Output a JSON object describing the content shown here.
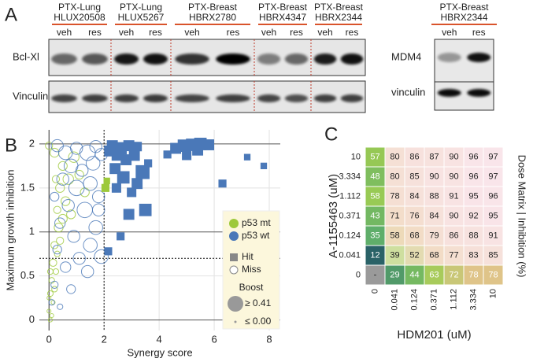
{
  "panel_a": {
    "label": "A",
    "groups": [
      {
        "tissue": "PTX-Lung",
        "model": "HLUX20508",
        "lanes": [
          "veh",
          "res"
        ]
      },
      {
        "tissue": "PTX-Lung",
        "model": "HLUX5267",
        "lanes": [
          "veh",
          "res"
        ]
      },
      {
        "tissue": "PTX-Breast",
        "model": "HBRX2780",
        "lanes": [
          "veh",
          "res"
        ]
      },
      {
        "tissue": "PTX-Breast",
        "model": "HBRX4347",
        "lanes": [
          "veh",
          "res"
        ]
      },
      {
        "tissue": "PTX-Breast",
        "model": "HBRX2344",
        "lanes": [
          "veh",
          "res"
        ]
      }
    ],
    "rows": [
      "Bcl-Xl",
      "Vinculin"
    ],
    "side": {
      "tissue": "PTX-Breast",
      "model": "HBRX2344",
      "lanes": [
        "veh",
        "res"
      ],
      "rows": [
        "MDM4",
        "vinculin"
      ]
    }
  },
  "chart_data": [
    {
      "type": "scatter",
      "panel_label": "B",
      "xlabel": "Synergy score",
      "ylabel": "Maximum growth inhibition",
      "xlim": [
        -0.35,
        8.4
      ],
      "ylim": [
        -0.12,
        2.16
      ],
      "xticks": [
        0,
        2,
        4,
        6,
        8
      ],
      "yticks": [
        0,
        0.5,
        1,
        1.5,
        2
      ],
      "grid": true,
      "thresholds": {
        "x": 2,
        "y": 0.7
      },
      "series": [
        {
          "name": "p53 mt",
          "color": "#9dc93b",
          "x": [
            2.05,
            2.1,
            0.05,
            0.1,
            0.0,
            0.15,
            0.05,
            0.2,
            0.1,
            0.25,
            0.15,
            0.3,
            0.2,
            0.4,
            0.35,
            0.5,
            0.3,
            0.6,
            0.4,
            0.7,
            0.5,
            0.2,
            0.0,
            0.9,
            1.1,
            0.8,
            1.3,
            0.05,
            0.0,
            0.25
          ],
          "values": [
            1.5,
            1.58,
            0.0,
            0.05,
            0.1,
            0.2,
            0.3,
            0.35,
            0.45,
            0.55,
            0.65,
            0.75,
            0.85,
            0.9,
            1.05,
            1.15,
            1.25,
            1.35,
            1.5,
            1.6,
            1.75,
            1.9,
            1.98,
            1.85,
            1.65,
            1.2,
            1.45,
            0.55,
            0.25,
            1.6
          ],
          "size": [
            0.2,
            0.15,
            0.05,
            0.05,
            0.05,
            0.05,
            0.1,
            0.1,
            0.1,
            0.1,
            0.15,
            0.1,
            0.15,
            0.15,
            0.2,
            0.2,
            0.15,
            0.2,
            0.2,
            0.25,
            0.2,
            0.2,
            0.15,
            0.25,
            0.2,
            0.2,
            0.2,
            0.1,
            0.05,
            0.15
          ],
          "hit": [
            true,
            true,
            false,
            false,
            false,
            false,
            false,
            false,
            false,
            false,
            false,
            false,
            false,
            false,
            false,
            false,
            false,
            false,
            false,
            false,
            false,
            false,
            false,
            false,
            false,
            false,
            false,
            false,
            false,
            false
          ]
        },
        {
          "name": "p53 wt",
          "color": "#4a78b8",
          "x": [
            2.3,
            2.6,
            2.9,
            3.2,
            2.5,
            2.8,
            3.1,
            2.4,
            2.7,
            3.4,
            3.2,
            3.0,
            2.9,
            3.5,
            2.6,
            2.15,
            4.6,
            4.9,
            5.2,
            5.5,
            5.8,
            5.4,
            5.0,
            4.3,
            6.3,
            7.2,
            7.8,
            2.2,
            2.45,
            3.6,
            0.3,
            0.6,
            1.0,
            1.4,
            1.7,
            0.8,
            1.2,
            1.6,
            0.5,
            1.0,
            1.5,
            1.8,
            0.7,
            1.3,
            0.4,
            1.7,
            0.9,
            1.5,
            0.3,
            1.1,
            1.9,
            0.6,
            1.4,
            0.2,
            0.8,
            0.1,
            0.4,
            1.8,
            1.9,
            0.2
          ],
          "values": [
            1.98,
            1.95,
            1.98,
            1.97,
            1.88,
            1.82,
            1.87,
            1.72,
            1.62,
            1.68,
            1.55,
            1.45,
            1.2,
            1.25,
            0.95,
            0.78,
            1.95,
            1.98,
            1.99,
            2.0,
            1.99,
            1.93,
            1.87,
            1.88,
            1.55,
            1.85,
            1.75,
            1.92,
            1.5,
            1.78,
            1.98,
            1.9,
            1.95,
            1.9,
            1.97,
            1.75,
            1.7,
            1.78,
            1.6,
            1.5,
            1.55,
            1.4,
            1.3,
            1.25,
            1.1,
            1.05,
            0.95,
            0.85,
            0.8,
            0.7,
            0.72,
            0.6,
            0.55,
            0.4,
            0.35,
            0.2,
            0.15,
            1.25,
            1.88,
            1.4
          ],
          "size": [
            0.3,
            0.35,
            0.3,
            0.25,
            0.35,
            0.3,
            0.3,
            0.3,
            0.35,
            0.4,
            0.3,
            0.25,
            0.3,
            0.35,
            0.2,
            0.2,
            0.3,
            0.35,
            0.35,
            0.35,
            0.3,
            0.3,
            0.25,
            0.2,
            0.2,
            0.15,
            0.15,
            0.3,
            0.25,
            0.2,
            0.3,
            0.35,
            0.3,
            0.4,
            0.3,
            0.35,
            0.3,
            0.35,
            0.3,
            0.4,
            0.35,
            0.3,
            0.3,
            0.4,
            0.25,
            0.35,
            0.3,
            0.35,
            0.2,
            0.3,
            0.35,
            0.25,
            0.3,
            0.15,
            0.2,
            0.1,
            0.1,
            0.3,
            0.3,
            0.2
          ],
          "hit": [
            true,
            true,
            true,
            true,
            true,
            true,
            true,
            true,
            true,
            true,
            true,
            true,
            true,
            true,
            true,
            true,
            true,
            true,
            true,
            true,
            true,
            true,
            true,
            true,
            true,
            true,
            true,
            true,
            true,
            true,
            false,
            false,
            false,
            false,
            false,
            false,
            false,
            false,
            false,
            false,
            false,
            false,
            false,
            false,
            false,
            false,
            false,
            false,
            false,
            false,
            false,
            false,
            false,
            false,
            false,
            false,
            false,
            false,
            false,
            false
          ]
        }
      ],
      "marker_legend": {
        "hit": "Hit",
        "miss": "Miss"
      },
      "size_legend": {
        "title": "Boost",
        "entries": [
          {
            "value": 0.41,
            "label": "≥ 0.41"
          },
          {
            "value": 0,
            "label": "≤ 0.00"
          }
        ]
      }
    },
    {
      "type": "heatmap",
      "panel_label": "C",
      "xlabel": "HDM201 (uM)",
      "ylabel": "A-1155463 (uM)",
      "colorbar_label": "Dose Matrix | Inhibition (%)",
      "x": [
        "0",
        "0.041",
        "0.124",
        "0.371",
        "1.112",
        "3.334",
        "10"
      ],
      "y": [
        "10",
        "3.334",
        "1.112",
        "0.371",
        "0.124",
        "0.041",
        "0"
      ],
      "values": [
        [
          57,
          80,
          86,
          87,
          90,
          96,
          97
        ],
        [
          48,
          80,
          85,
          90,
          90,
          96,
          97
        ],
        [
          58,
          78,
          84,
          88,
          91,
          95,
          96
        ],
        [
          43,
          71,
          76,
          84,
          90,
          92,
          95
        ],
        [
          35,
          58,
          68,
          79,
          86,
          88,
          91
        ],
        [
          12,
          39,
          52,
          68,
          77,
          83,
          85
        ],
        [
          null,
          29,
          44,
          63,
          72,
          78,
          78
        ]
      ],
      "missing_label": "-",
      "missing_color": "#9a9a9a",
      "single_agent_colors": {
        "stops": [
          0,
          35,
          60,
          80
        ],
        "colors": [
          "#0e3a66",
          "#5fae6a",
          "#9dcc52",
          "#e6c38f"
        ]
      },
      "combination_colors": {
        "stops": [
          35,
          60,
          100
        ],
        "colors": [
          "#c8e09a",
          "#f0d9bc",
          "#fae6ee"
        ]
      }
    }
  ]
}
